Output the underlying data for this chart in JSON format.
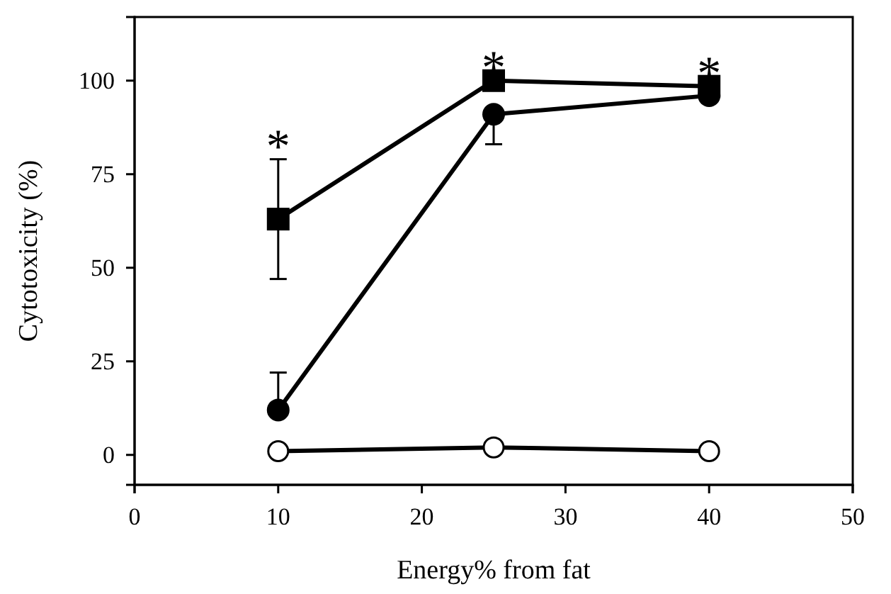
{
  "chart_data": {
    "type": "line",
    "xlabel": "Energy% from fat",
    "ylabel": "Cytotoxicity (%)",
    "x": [
      10,
      25,
      40
    ],
    "xlim": [
      0,
      50
    ],
    "xticks": [
      0,
      10,
      20,
      30,
      40,
      50
    ],
    "ylim": [
      -8,
      117
    ],
    "yticks": [
      0,
      25,
      50,
      75,
      100
    ],
    "grid": false,
    "series": [
      {
        "color": "#000000",
        "marker": "square",
        "values": [
          63,
          100,
          98.5
        ],
        "errors": [
          [
            47,
            79
          ],
          null,
          null
        ]
      },
      {
        "color": "#000000",
        "marker": "circle",
        "values": [
          12,
          91,
          96
        ],
        "errors": [
          [
            12,
            22
          ],
          [
            83,
            91
          ],
          null
        ]
      },
      {
        "color": "#000000",
        "marker": "circle-open",
        "values": [
          1,
          2,
          1
        ]
      }
    ],
    "annotations": [
      {
        "text": "*",
        "x": 10,
        "y": 79
      },
      {
        "text": "*",
        "x": 25,
        "y": 100
      },
      {
        "text": "*",
        "x": 40,
        "y": 98.5
      }
    ]
  }
}
